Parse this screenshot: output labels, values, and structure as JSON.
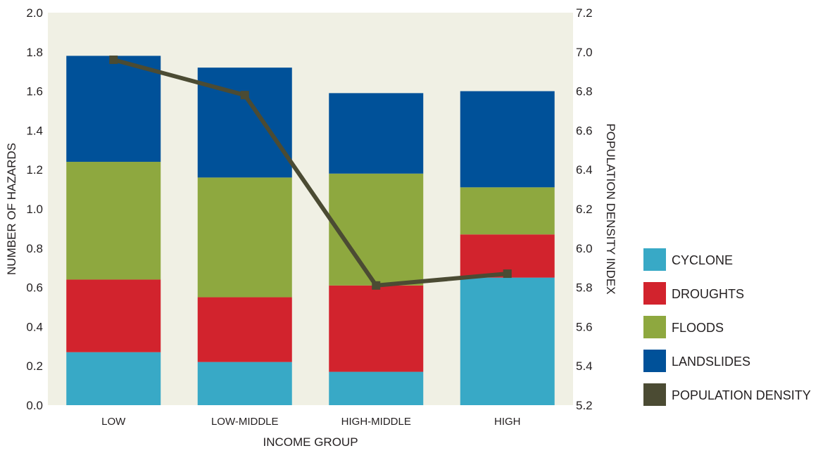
{
  "chart_data": {
    "type": "bar",
    "stacked": true,
    "categories": [
      "LOW",
      "LOW-MIDDLE",
      "HIGH-MIDDLE",
      "HIGH"
    ],
    "xlabel": "INCOME GROUP",
    "ylabel": "NUMBER OF HAZARDS",
    "y2label": "POPULATION DENSITY INDEX",
    "ylim": [
      0,
      2.0
    ],
    "y2lim": [
      5.2,
      7.2
    ],
    "yticks": [
      "0.0",
      "0.2",
      "0.4",
      "0.6",
      "0.8",
      "1.0",
      "1.2",
      "1.4",
      "1.6",
      "1.8",
      "2.0"
    ],
    "y2ticks": [
      "5.2",
      "5.4",
      "5.6",
      "5.8",
      "6.0",
      "6.2",
      "6.4",
      "6.6",
      "6.8",
      "7.0",
      "7.2"
    ],
    "series": [
      {
        "name": "CYCLONE",
        "color": "#38a9c6",
        "values": [
          0.27,
          0.22,
          0.17,
          0.65
        ]
      },
      {
        "name": "DROUGHTS",
        "color": "#d2232d",
        "values": [
          0.37,
          0.33,
          0.44,
          0.22
        ]
      },
      {
        "name": "FLOODS",
        "color": "#8ea83f",
        "values": [
          0.6,
          0.61,
          0.57,
          0.24
        ]
      },
      {
        "name": "LANDSLIDES",
        "color": "#005199",
        "values": [
          0.54,
          0.56,
          0.41,
          0.49
        ]
      }
    ],
    "line": {
      "name": "POPULATION DENSITY",
      "color": "#4b4b33",
      "axis": "right",
      "values": [
        6.96,
        6.78,
        5.81,
        5.87
      ]
    },
    "legend_position": "right",
    "plot_background": "#f0f0e4",
    "grid": false
  }
}
